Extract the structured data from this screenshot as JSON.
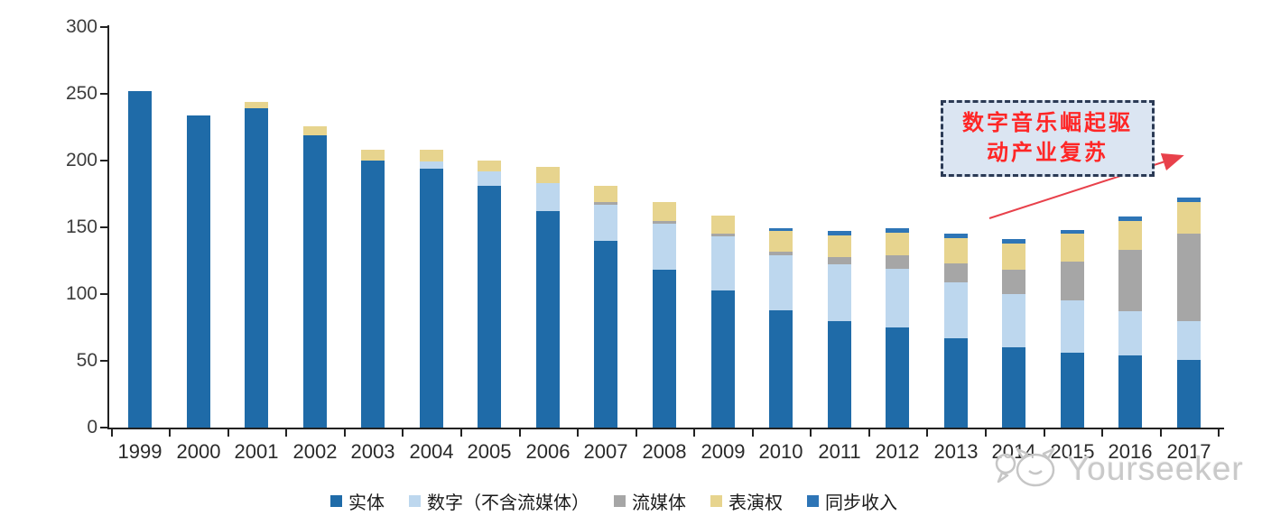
{
  "chart_data": {
    "type": "bar",
    "stacked": true,
    "title": "",
    "xlabel": "",
    "ylabel": "",
    "ylim": [
      0,
      300
    ],
    "yticks": [
      0,
      50,
      100,
      150,
      200,
      250,
      300
    ],
    "grid": false,
    "legend_position": "bottom",
    "categories": [
      "1999",
      "2000",
      "2001",
      "2002",
      "2003",
      "2004",
      "2005",
      "2006",
      "2007",
      "2008",
      "2009",
      "2010",
      "2011",
      "2012",
      "2013",
      "2014",
      "2015",
      "2016",
      "2017"
    ],
    "series": [
      {
        "name": "实体",
        "color": "#1F6BA8",
        "values": [
          252,
          234,
          239,
          219,
          200,
          194,
          181,
          162,
          140,
          118,
          103,
          88,
          80,
          75,
          67,
          60,
          56,
          54,
          51
        ]
      },
      {
        "name": "数字（不含流媒体）",
        "color": "#BDD7EE",
        "values": [
          0,
          0,
          0,
          0,
          0,
          5,
          11,
          21,
          27,
          35,
          40,
          41,
          42,
          44,
          42,
          40,
          39,
          33,
          29
        ]
      },
      {
        "name": "流媒体",
        "color": "#A6A6A6",
        "values": [
          0,
          0,
          0,
          0,
          0,
          0,
          0,
          0,
          2,
          2,
          2,
          3,
          6,
          10,
          14,
          18,
          29,
          46,
          65
        ]
      },
      {
        "name": "表演权",
        "color": "#E7D48E",
        "values": [
          0,
          0,
          5,
          7,
          8,
          9,
          8,
          12,
          12,
          14,
          14,
          15,
          16,
          17,
          19,
          20,
          21,
          22,
          24
        ]
      },
      {
        "name": "同步收入",
        "color": "#2E75B6",
        "values": [
          0,
          0,
          0,
          0,
          0,
          0,
          0,
          0,
          0,
          0,
          0,
          2,
          3,
          3,
          3,
          3,
          3,
          3,
          3
        ]
      }
    ]
  },
  "annotation": {
    "line1": "数字音乐崛起驱",
    "line2": "动产业复苏",
    "full_text": "数字音乐崛起驱动产业复苏",
    "box_fill": "#DBE5F2",
    "border_color": "#2B3A55",
    "text_color": "#FF2626",
    "arrow_color": "#E8414B"
  },
  "watermark": {
    "text": "Yourseeker",
    "logo": "cat-chat-icon",
    "color": "#C9C9C9"
  },
  "axis": {
    "line_color": "#222222",
    "label_color": "#3D3D3D"
  }
}
